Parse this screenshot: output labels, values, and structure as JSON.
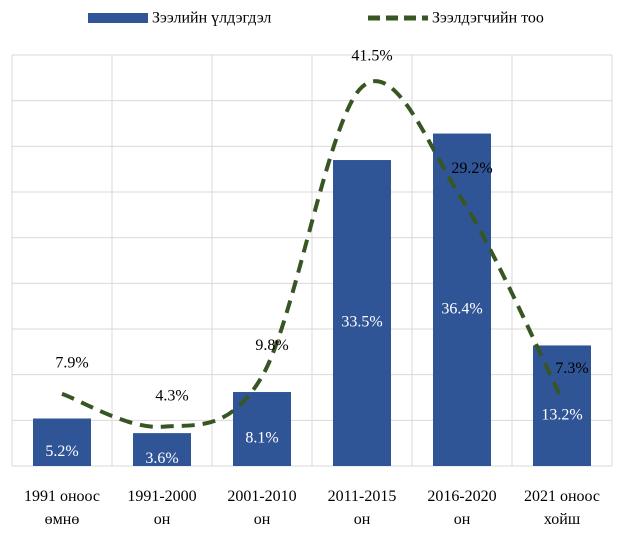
{
  "chart_data": {
    "type": "bar-line",
    "categories": [
      [
        "1991 оноос",
        "өмнө"
      ],
      [
        "1991-2000",
        "он"
      ],
      [
        "2001-2010",
        "он"
      ],
      [
        "2011-2015",
        "он"
      ],
      [
        "2016-2020",
        "он"
      ],
      [
        "2021 оноос",
        "хойш"
      ]
    ],
    "series": [
      {
        "name": "Зээлийн үлдэгдэл",
        "type": "bar",
        "color": "#2f5597",
        "values": [
          5.2,
          3.6,
          8.1,
          33.5,
          36.4,
          13.2
        ],
        "value_labels": [
          "5.2%",
          "3.6%",
          "8.1%",
          "33.5%",
          "36.4%",
          "13.2%"
        ]
      },
      {
        "name": "Зээлдэгчийн тоо",
        "type": "line",
        "color": "#375623",
        "values": [
          7.9,
          4.3,
          9.8,
          41.5,
          29.2,
          7.3
        ],
        "value_labels": [
          "7.9%",
          "4.3%",
          "9.8%",
          "41.5%",
          "29.2%",
          "7.3%"
        ]
      }
    ],
    "ylim": [
      0,
      45
    ],
    "yticks": [
      0,
      5,
      10,
      15,
      20,
      25,
      30,
      35,
      40,
      45
    ],
    "grid": true
  }
}
